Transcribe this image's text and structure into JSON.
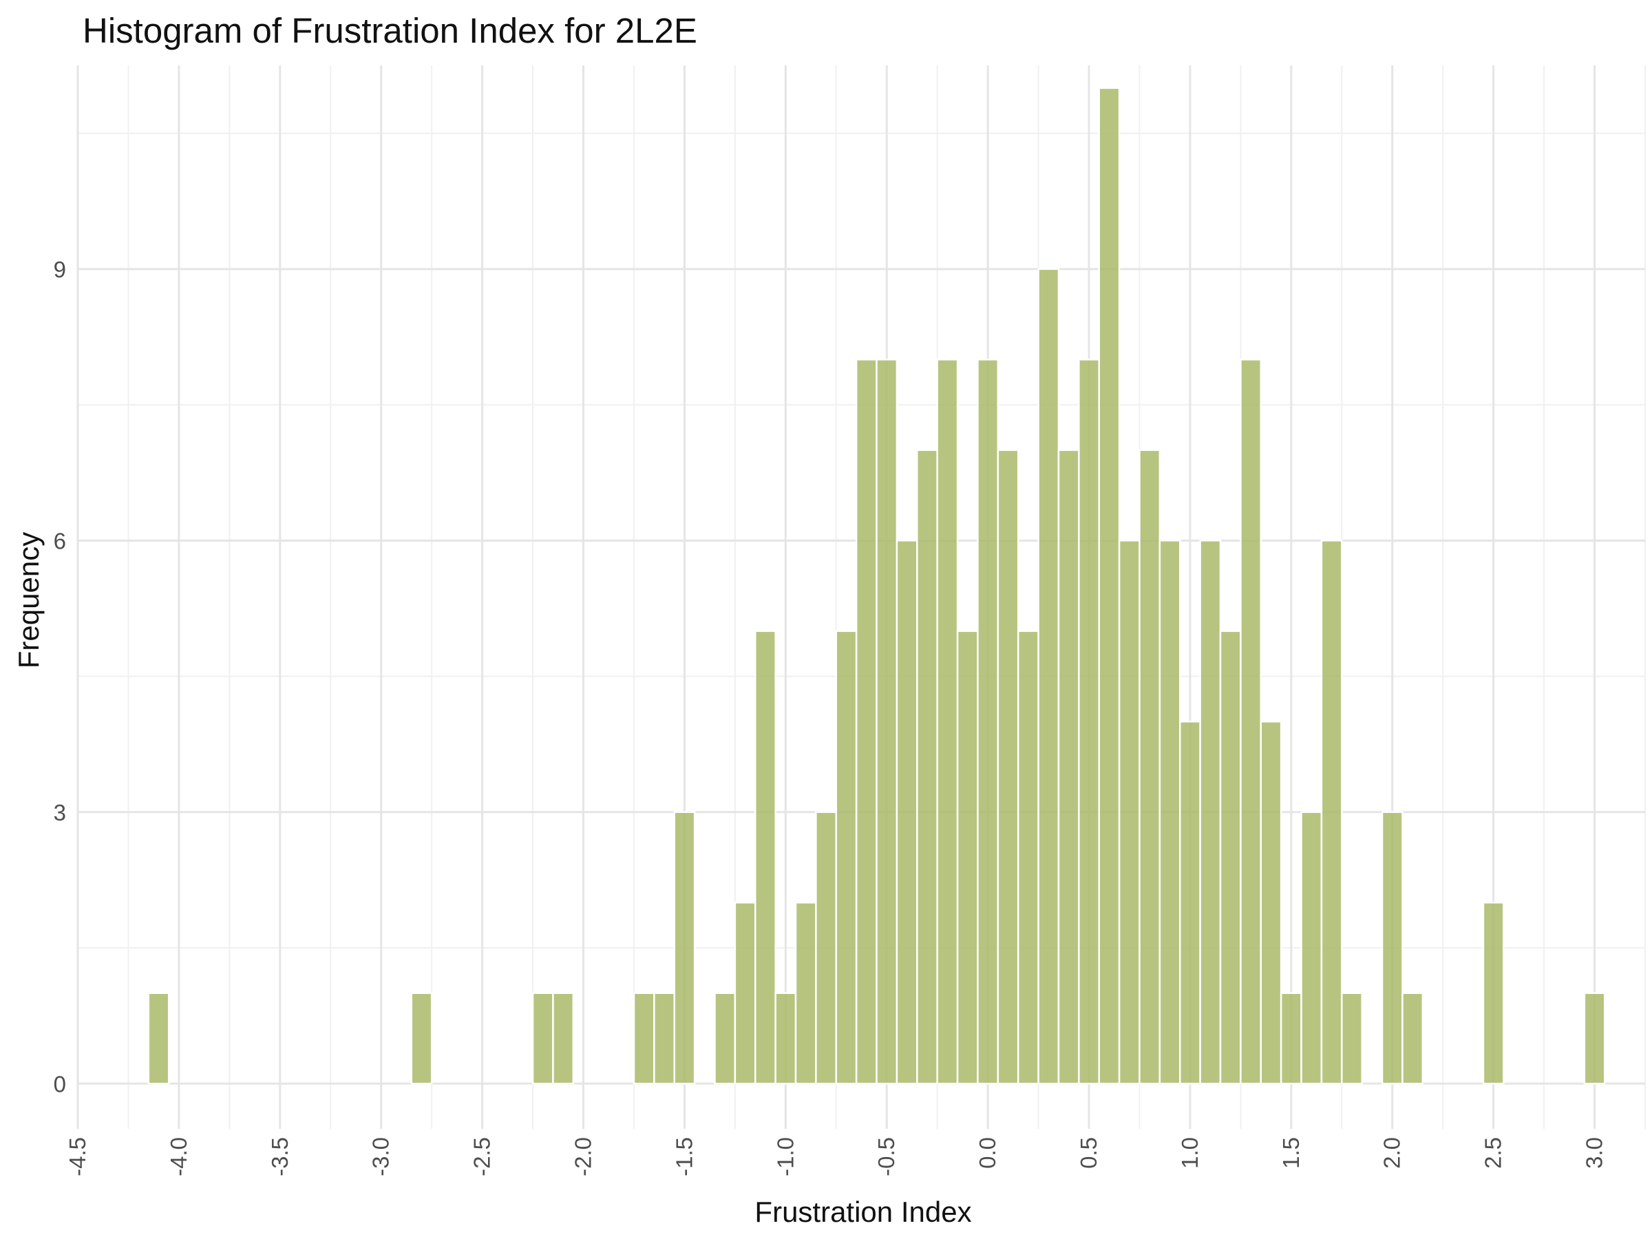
{
  "chart_data": {
    "type": "bar",
    "title": "Histogram of Frustration Index for 2L2E",
    "xlabel": "Frustration Index",
    "ylabel": "Frequency",
    "xlim": [
      -4.5,
      3.25
    ],
    "ylim": [
      -0.5,
      11.25
    ],
    "x_ticks": [
      "-4.5",
      "-4.0",
      "-3.5",
      "-3.0",
      "-2.5",
      "-2.0",
      "-1.5",
      "-1.0",
      "-0.5",
      "0.0",
      "0.5",
      "1.0",
      "1.5",
      "2.0",
      "2.5",
      "3.0"
    ],
    "y_ticks": [
      "0",
      "3",
      "6",
      "9"
    ],
    "bin_width": 0.1,
    "bar_color": "#a9ba6a",
    "bar_edge_color": "#ffffff",
    "bins": [
      {
        "x": -4.1,
        "count": 1
      },
      {
        "x": -2.8,
        "count": 1
      },
      {
        "x": -2.2,
        "count": 1
      },
      {
        "x": -2.1,
        "count": 1
      },
      {
        "x": -1.7,
        "count": 1
      },
      {
        "x": -1.6,
        "count": 1
      },
      {
        "x": -1.5,
        "count": 3
      },
      {
        "x": -1.3,
        "count": 1
      },
      {
        "x": -1.2,
        "count": 2
      },
      {
        "x": -1.1,
        "count": 5
      },
      {
        "x": -1.0,
        "count": 1
      },
      {
        "x": -0.9,
        "count": 2
      },
      {
        "x": -0.8,
        "count": 3
      },
      {
        "x": -0.7,
        "count": 5
      },
      {
        "x": -0.6,
        "count": 8
      },
      {
        "x": -0.5,
        "count": 8
      },
      {
        "x": -0.4,
        "count": 6
      },
      {
        "x": -0.3,
        "count": 7
      },
      {
        "x": -0.2,
        "count": 8
      },
      {
        "x": -0.1,
        "count": 5
      },
      {
        "x": 0.0,
        "count": 8
      },
      {
        "x": 0.1,
        "count": 7
      },
      {
        "x": 0.2,
        "count": 5
      },
      {
        "x": 0.3,
        "count": 9
      },
      {
        "x": 0.4,
        "count": 7
      },
      {
        "x": 0.5,
        "count": 8
      },
      {
        "x": 0.6,
        "count": 11
      },
      {
        "x": 0.7,
        "count": 6
      },
      {
        "x": 0.8,
        "count": 7
      },
      {
        "x": 0.9,
        "count": 6
      },
      {
        "x": 1.0,
        "count": 4
      },
      {
        "x": 1.1,
        "count": 6
      },
      {
        "x": 1.2,
        "count": 5
      },
      {
        "x": 1.3,
        "count": 8
      },
      {
        "x": 1.4,
        "count": 4
      },
      {
        "x": 1.5,
        "count": 1
      },
      {
        "x": 1.6,
        "count": 3
      },
      {
        "x": 1.7,
        "count": 6
      },
      {
        "x": 1.8,
        "count": 1
      },
      {
        "x": 2.0,
        "count": 3
      },
      {
        "x": 2.1,
        "count": 1
      },
      {
        "x": 2.5,
        "count": 2
      },
      {
        "x": 3.0,
        "count": 1
      }
    ]
  }
}
